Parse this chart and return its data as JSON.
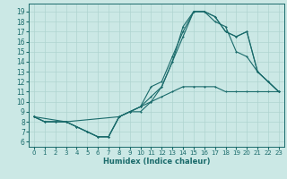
{
  "xlabel": "Humidex (Indice chaleur)",
  "xlim": [
    -0.5,
    23.5
  ],
  "ylim": [
    5.5,
    19.8
  ],
  "xticks": [
    0,
    1,
    2,
    3,
    4,
    5,
    6,
    7,
    8,
    9,
    10,
    11,
    12,
    13,
    14,
    15,
    16,
    17,
    18,
    19,
    20,
    21,
    22,
    23
  ],
  "yticks": [
    6,
    7,
    8,
    9,
    10,
    11,
    12,
    13,
    14,
    15,
    16,
    17,
    18,
    19
  ],
  "bg_color": "#cbe8e5",
  "line_color": "#1a6b6b",
  "grid_color": "#afd4d0",
  "line1_x": [
    0,
    1,
    2,
    3,
    4,
    5,
    6,
    7,
    8,
    9,
    10,
    11,
    12,
    13,
    14,
    15,
    16,
    17,
    18,
    19,
    20,
    21,
    22,
    23
  ],
  "line1_y": [
    8.5,
    8.0,
    8.0,
    8.0,
    7.5,
    7.0,
    6.5,
    6.5,
    8.5,
    9.0,
    9.5,
    10.5,
    11.5,
    14.0,
    17.5,
    19.0,
    19.0,
    18.5,
    17.0,
    16.5,
    17.0,
    13.0,
    12.0,
    11.0
  ],
  "line2_x": [
    0,
    1,
    2,
    3,
    4,
    5,
    6,
    7,
    8,
    9,
    10,
    11,
    12,
    13,
    14,
    15,
    16,
    17,
    18,
    19,
    20,
    21,
    22,
    23
  ],
  "line2_y": [
    8.5,
    8.0,
    8.0,
    8.0,
    7.5,
    7.0,
    6.5,
    6.5,
    8.5,
    9.0,
    9.0,
    10.0,
    11.5,
    14.0,
    16.5,
    19.0,
    19.0,
    18.0,
    17.5,
    15.0,
    14.5,
    13.0,
    12.0,
    11.0
  ],
  "line3_x": [
    0,
    3,
    8,
    9,
    10,
    11,
    12,
    13,
    14,
    15,
    16,
    17,
    18,
    19,
    20,
    21,
    22,
    23
  ],
  "line3_y": [
    8.5,
    8.0,
    8.5,
    9.0,
    9.5,
    11.5,
    12.0,
    14.5,
    17.0,
    19.0,
    19.0,
    18.5,
    17.0,
    16.5,
    17.0,
    13.0,
    12.0,
    11.0
  ],
  "line4_x": [
    0,
    1,
    2,
    3,
    4,
    5,
    6,
    7,
    8,
    9,
    10,
    11,
    12,
    13,
    14,
    15,
    16,
    17,
    18,
    19,
    20,
    21,
    22,
    23
  ],
  "line4_y": [
    8.5,
    8.0,
    8.0,
    8.0,
    7.5,
    7.0,
    6.5,
    6.5,
    8.5,
    9.0,
    9.5,
    10.0,
    10.5,
    11.0,
    11.5,
    11.5,
    11.5,
    11.5,
    11.0,
    11.0,
    11.0,
    11.0,
    11.0,
    11.0
  ]
}
